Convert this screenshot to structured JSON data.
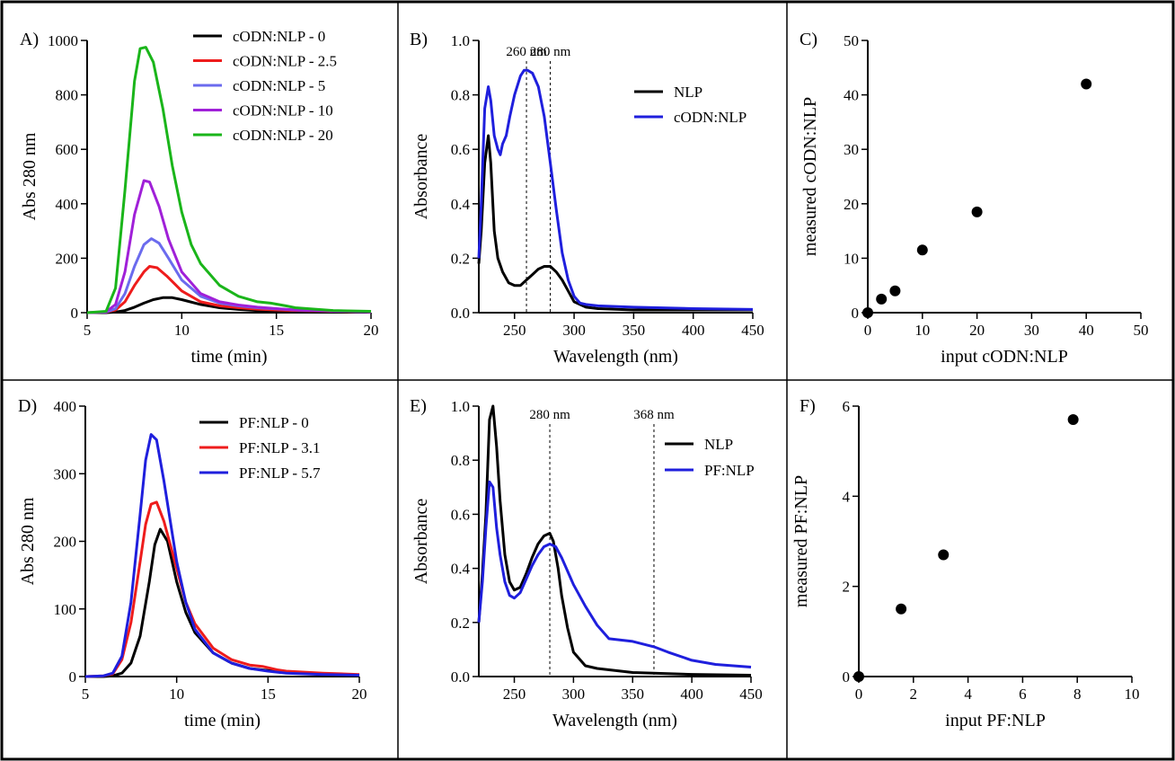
{
  "chart_data": [
    {
      "panel": "A)",
      "type": "line",
      "xlabel": "time (min)",
      "ylabel": "Abs 280 nm",
      "xlim": [
        5,
        20
      ],
      "ylim": [
        0,
        1000
      ],
      "xticks": [
        5,
        10,
        15,
        20
      ],
      "yticks": [
        0,
        200,
        400,
        600,
        800,
        1000
      ],
      "legend_position": "top-right",
      "series": [
        {
          "name": "cODN:NLP - 0",
          "color": "#000000",
          "x": [
            5,
            6,
            6.5,
            7,
            7.5,
            8,
            8.5,
            9,
            9.5,
            10,
            11,
            12,
            13,
            14,
            15,
            16,
            18,
            20
          ],
          "y": [
            0,
            0,
            2,
            8,
            20,
            35,
            48,
            55,
            55,
            48,
            30,
            18,
            12,
            8,
            6,
            5,
            3,
            2
          ]
        },
        {
          "name": "cODN:NLP - 2.5",
          "color": "#ee1c1c",
          "x": [
            5,
            6,
            6.5,
            7,
            7.5,
            8,
            8.3,
            8.7,
            9.2,
            10,
            11,
            12,
            13,
            14,
            15,
            16,
            18,
            20
          ],
          "y": [
            0,
            2,
            10,
            40,
            100,
            150,
            170,
            165,
            135,
            80,
            40,
            25,
            18,
            13,
            10,
            8,
            5,
            3
          ]
        },
        {
          "name": "cODN:NLP - 5",
          "color": "#6b6bee",
          "x": [
            5,
            6,
            6.5,
            7,
            7.5,
            8,
            8.4,
            8.8,
            9.3,
            10,
            11,
            12,
            13,
            14,
            15,
            16,
            18,
            20
          ],
          "y": [
            0,
            2,
            15,
            70,
            170,
            250,
            272,
            255,
            200,
            120,
            60,
            35,
            25,
            18,
            14,
            10,
            6,
            3
          ]
        },
        {
          "name": "cODN:NLP - 10",
          "color": "#a020d8",
          "x": [
            5,
            6,
            6.5,
            7,
            7.5,
            8,
            8.3,
            8.8,
            9.3,
            10,
            11,
            12,
            13,
            14,
            15,
            16,
            18,
            20
          ],
          "y": [
            0,
            3,
            30,
            150,
            360,
            485,
            480,
            390,
            270,
            150,
            70,
            40,
            28,
            20,
            15,
            10,
            6,
            3
          ]
        },
        {
          "name": "cODN:NLP - 20",
          "color": "#1ab51a",
          "x": [
            5,
            6,
            6.5,
            7,
            7.5,
            7.8,
            8.1,
            8.5,
            9,
            9.5,
            10,
            10.5,
            11,
            12,
            13,
            14,
            14.7,
            15.5,
            16,
            18,
            20
          ],
          "y": [
            0,
            5,
            90,
            450,
            850,
            970,
            975,
            920,
            750,
            540,
            370,
            250,
            180,
            100,
            60,
            40,
            35,
            25,
            18,
            8,
            5
          ]
        }
      ]
    },
    {
      "panel": "B)",
      "type": "line",
      "xlabel": "Wavelength (nm)",
      "ylabel": "Absorbance",
      "xlim": [
        220,
        450
      ],
      "ylim": [
        0,
        1.0
      ],
      "xticks": [
        250,
        300,
        350,
        400,
        450
      ],
      "yticks": [
        0.0,
        0.2,
        0.4,
        0.6,
        0.8,
        1.0
      ],
      "legend_position": "right",
      "annotations": [
        {
          "label": "260 nm",
          "x": 260
        },
        {
          "label": "280 nm",
          "x": 280
        }
      ],
      "series": [
        {
          "name": "NLP",
          "color": "#000000",
          "x": [
            220,
            222,
            225,
            228,
            230,
            233,
            236,
            240,
            245,
            250,
            255,
            260,
            265,
            270,
            275,
            280,
            285,
            290,
            295,
            300,
            310,
            320,
            350,
            400,
            450
          ],
          "y": [
            0.18,
            0.3,
            0.55,
            0.65,
            0.55,
            0.3,
            0.2,
            0.15,
            0.11,
            0.1,
            0.1,
            0.12,
            0.14,
            0.16,
            0.17,
            0.17,
            0.15,
            0.12,
            0.08,
            0.04,
            0.02,
            0.015,
            0.01,
            0.01,
            0.01
          ]
        },
        {
          "name": "cODN:NLP",
          "color": "#1f1fdd",
          "x": [
            220,
            222,
            225,
            228,
            230,
            233,
            236,
            238,
            240,
            243,
            246,
            250,
            255,
            258,
            261,
            265,
            270,
            275,
            280,
            285,
            290,
            295,
            300,
            305,
            310,
            320,
            350,
            400,
            450
          ],
          "y": [
            0.2,
            0.4,
            0.75,
            0.83,
            0.78,
            0.65,
            0.6,
            0.58,
            0.62,
            0.65,
            0.72,
            0.8,
            0.87,
            0.89,
            0.89,
            0.88,
            0.83,
            0.72,
            0.55,
            0.38,
            0.22,
            0.12,
            0.06,
            0.035,
            0.03,
            0.025,
            0.02,
            0.015,
            0.012
          ]
        }
      ]
    },
    {
      "panel": "C)",
      "type": "scatter",
      "xlabel": "input cODN:NLP",
      "ylabel": "measured cODN:NLP",
      "xlim": [
        0,
        50
      ],
      "ylim": [
        0,
        50
      ],
      "xticks": [
        0,
        10,
        20,
        30,
        40,
        50
      ],
      "yticks": [
        0,
        10,
        20,
        30,
        40,
        50
      ],
      "series": [
        {
          "name": "",
          "color": "#000000",
          "x": [
            0,
            2.5,
            5,
            10,
            20,
            40
          ],
          "y": [
            0,
            2.5,
            4,
            11.5,
            18.5,
            42
          ]
        }
      ]
    },
    {
      "panel": "D)",
      "type": "line",
      "xlabel": "time (min)",
      "ylabel": "Abs 280 nm",
      "xlim": [
        5,
        20
      ],
      "ylim": [
        0,
        400
      ],
      "xticks": [
        5,
        10,
        15,
        20
      ],
      "yticks": [
        0,
        100,
        200,
        300,
        400
      ],
      "legend_position": "top-right",
      "series": [
        {
          "name": "PF:NLP - 0",
          "color": "#000000",
          "x": [
            5,
            6,
            6.5,
            7,
            7.5,
            8,
            8.5,
            8.8,
            9.1,
            9.5,
            10,
            10.5,
            11,
            12,
            13,
            14,
            15,
            16,
            18,
            20
          ],
          "y": [
            0,
            0,
            1,
            5,
            20,
            60,
            140,
            195,
            218,
            200,
            140,
            95,
            65,
            35,
            20,
            12,
            9,
            6,
            4,
            2
          ]
        },
        {
          "name": "PF:NLP - 3.1",
          "color": "#ee1c1c",
          "x": [
            5,
            6,
            6.5,
            7,
            7.5,
            8,
            8.3,
            8.6,
            8.9,
            9.3,
            10,
            10.5,
            11,
            12,
            13,
            14,
            14.7,
            15.5,
            16,
            18,
            20
          ],
          "y": [
            0,
            1,
            4,
            25,
            80,
            170,
            225,
            255,
            258,
            230,
            160,
            110,
            78,
            42,
            25,
            17,
            15,
            10,
            8,
            5,
            3
          ]
        },
        {
          "name": "PF:NLP - 5.7",
          "color": "#1f1fdd",
          "x": [
            5,
            6,
            6.5,
            7,
            7.5,
            8,
            8.3,
            8.6,
            8.9,
            9.3,
            10,
            10.5,
            11,
            12,
            13,
            14,
            15,
            16,
            18,
            20
          ],
          "y": [
            0,
            1,
            5,
            30,
            110,
            240,
            320,
            358,
            350,
            290,
            170,
            110,
            70,
            35,
            20,
            12,
            8,
            5,
            3,
            2
          ]
        }
      ]
    },
    {
      "panel": "E)",
      "type": "line",
      "xlabel": "Wavelength (nm)",
      "ylabel": "Absorbance",
      "xlim": [
        220,
        450
      ],
      "ylim": [
        0,
        1.0
      ],
      "xticks": [
        250,
        300,
        350,
        400,
        450
      ],
      "yticks": [
        0.0,
        0.2,
        0.4,
        0.6,
        0.8,
        1.0
      ],
      "legend_position": "top-right",
      "annotations": [
        {
          "label": "280 nm",
          "x": 280
        },
        {
          "label": "368 nm",
          "x": 368
        }
      ],
      "series": [
        {
          "name": "NLP",
          "color": "#000000",
          "x": [
            220,
            223,
            226,
            229,
            232,
            235,
            238,
            242,
            246,
            250,
            255,
            260,
            265,
            270,
            275,
            280,
            283,
            287,
            290,
            295,
            300,
            310,
            320,
            350,
            400,
            450
          ],
          "y": [
            0.2,
            0.38,
            0.6,
            0.95,
            1.0,
            0.85,
            0.65,
            0.45,
            0.35,
            0.32,
            0.33,
            0.38,
            0.44,
            0.49,
            0.52,
            0.53,
            0.5,
            0.4,
            0.3,
            0.18,
            0.09,
            0.04,
            0.03,
            0.015,
            0.008,
            0.005
          ]
        },
        {
          "name": "PF:NLP",
          "color": "#1f1fdd",
          "x": [
            220,
            223,
            226,
            229,
            232,
            235,
            238,
            242,
            246,
            250,
            255,
            260,
            265,
            270,
            275,
            280,
            285,
            290,
            295,
            300,
            310,
            320,
            330,
            350,
            368,
            380,
            400,
            420,
            450
          ],
          "y": [
            0.2,
            0.35,
            0.55,
            0.72,
            0.7,
            0.55,
            0.45,
            0.35,
            0.3,
            0.29,
            0.31,
            0.36,
            0.41,
            0.45,
            0.48,
            0.49,
            0.48,
            0.44,
            0.39,
            0.34,
            0.26,
            0.19,
            0.14,
            0.13,
            0.11,
            0.09,
            0.06,
            0.045,
            0.035
          ]
        }
      ]
    },
    {
      "panel": "F)",
      "type": "scatter",
      "xlabel": "input PF:NLP",
      "ylabel": "measured PF:NLP",
      "xlim": [
        0,
        10
      ],
      "ylim": [
        0,
        6
      ],
      "xticks": [
        0,
        2,
        4,
        6,
        8,
        10
      ],
      "yticks": [
        0,
        2,
        4,
        6
      ],
      "series": [
        {
          "name": "",
          "color": "#000000",
          "x": [
            0,
            1.55,
            3.1,
            7.85
          ],
          "y": [
            0,
            1.5,
            2.7,
            5.7
          ]
        }
      ]
    }
  ]
}
